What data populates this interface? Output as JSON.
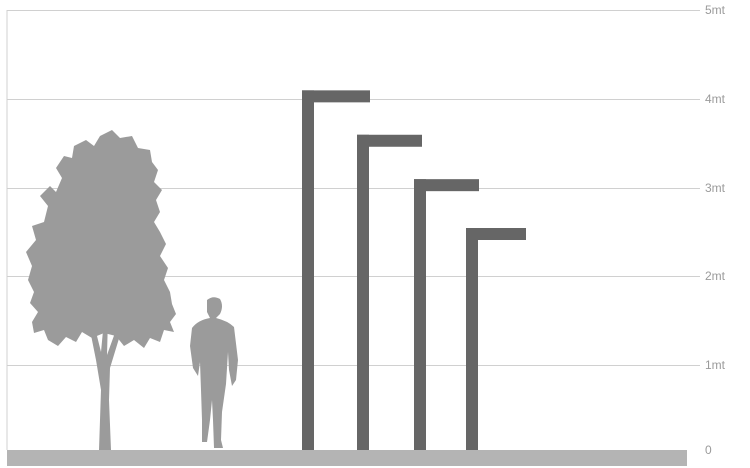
{
  "scale": {
    "unit_labels": [
      "0",
      "1mt",
      "2mt",
      "3mt",
      "4mt",
      "5mt"
    ]
  },
  "poles": [
    {
      "height_m": 4.05
    },
    {
      "height_m": 3.55
    },
    {
      "height_m": 3.05
    },
    {
      "height_m": 2.5
    }
  ],
  "figures": [
    "tree-silhouette",
    "person-silhouette"
  ],
  "colors": {
    "gridline": "#d0d0d0",
    "ground": "#b4b4b4",
    "pole": "#666666",
    "silhouette": "#9b9b9b",
    "label": "#9a9a9a"
  }
}
